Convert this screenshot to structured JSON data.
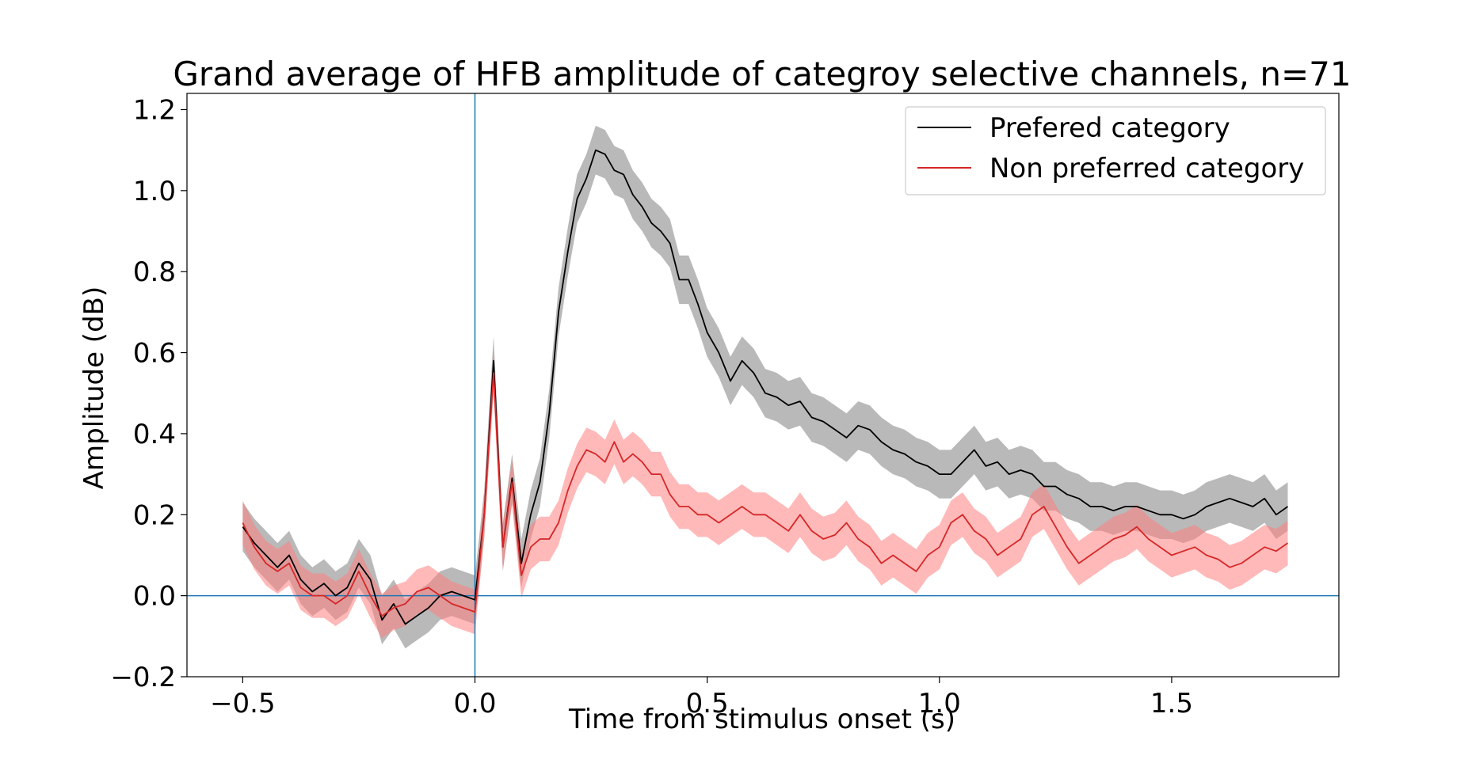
{
  "chart_data": {
    "type": "line",
    "title": "Grand average of HFB amplitude of categroy selective channels, n=71",
    "xlabel": "Time from stimulus onset (s)",
    "ylabel": "Amplitude (dB)",
    "xlim": [
      -0.62,
      1.86
    ],
    "ylim": [
      -0.2,
      1.24
    ],
    "xticks": [
      -0.5,
      0.0,
      0.5,
      1.0,
      1.5
    ],
    "xtick_labels": [
      "−0.5",
      "0.0",
      "0.5",
      "1.0",
      "1.5"
    ],
    "yticks": [
      -0.2,
      0.0,
      0.2,
      0.4,
      0.6,
      0.8,
      1.0,
      1.2
    ],
    "ytick_labels": [
      "−0.2",
      "0.0",
      "0.2",
      "0.4",
      "0.6",
      "0.8",
      "1.0",
      "1.2"
    ],
    "reference_lines": {
      "x": 0.0,
      "y": 0.0,
      "color": "#1f77b4"
    },
    "legend_position": "top-right",
    "x": [
      -0.5,
      -0.475,
      -0.45,
      -0.425,
      -0.4,
      -0.375,
      -0.35,
      -0.325,
      -0.3,
      -0.275,
      -0.25,
      -0.225,
      -0.2,
      -0.175,
      -0.15,
      -0.125,
      -0.1,
      -0.075,
      -0.05,
      -0.025,
      0.0,
      0.02,
      0.04,
      0.06,
      0.08,
      0.1,
      0.12,
      0.14,
      0.16,
      0.18,
      0.2,
      0.22,
      0.24,
      0.26,
      0.28,
      0.3,
      0.32,
      0.34,
      0.36,
      0.38,
      0.4,
      0.42,
      0.44,
      0.46,
      0.48,
      0.5,
      0.525,
      0.55,
      0.575,
      0.6,
      0.625,
      0.65,
      0.675,
      0.7,
      0.725,
      0.75,
      0.775,
      0.8,
      0.825,
      0.85,
      0.875,
      0.9,
      0.925,
      0.95,
      0.975,
      1.0,
      1.025,
      1.05,
      1.075,
      1.1,
      1.125,
      1.15,
      1.175,
      1.2,
      1.225,
      1.25,
      1.275,
      1.3,
      1.325,
      1.35,
      1.375,
      1.4,
      1.425,
      1.45,
      1.475,
      1.5,
      1.525,
      1.55,
      1.575,
      1.6,
      1.625,
      1.65,
      1.675,
      1.7,
      1.725,
      1.75
    ],
    "series": [
      {
        "name": "Prefered category",
        "color": "#000000",
        "band_color": "#808080",
        "values": [
          0.17,
          0.13,
          0.1,
          0.07,
          0.1,
          0.04,
          0.01,
          0.03,
          0.0,
          0.02,
          0.08,
          0.04,
          -0.06,
          -0.02,
          -0.07,
          -0.05,
          -0.03,
          0.0,
          0.01,
          0.0,
          -0.01,
          0.2,
          0.58,
          0.12,
          0.29,
          0.08,
          0.2,
          0.28,
          0.45,
          0.7,
          0.85,
          0.98,
          1.03,
          1.1,
          1.09,
          1.05,
          1.04,
          0.99,
          0.96,
          0.92,
          0.9,
          0.87,
          0.78,
          0.78,
          0.72,
          0.65,
          0.6,
          0.53,
          0.58,
          0.55,
          0.5,
          0.49,
          0.47,
          0.48,
          0.44,
          0.43,
          0.41,
          0.39,
          0.42,
          0.41,
          0.38,
          0.36,
          0.35,
          0.33,
          0.32,
          0.3,
          0.3,
          0.33,
          0.36,
          0.32,
          0.33,
          0.3,
          0.31,
          0.3,
          0.27,
          0.27,
          0.25,
          0.24,
          0.22,
          0.22,
          0.21,
          0.22,
          0.22,
          0.21,
          0.2,
          0.2,
          0.19,
          0.2,
          0.22,
          0.23,
          0.24,
          0.23,
          0.22,
          0.24,
          0.2,
          0.22
        ],
        "band_half_width": 0.06
      },
      {
        "name": "Non preferred category",
        "color": "#d62728",
        "band_color": "#ff7f7f",
        "values": [
          0.18,
          0.12,
          0.08,
          0.06,
          0.08,
          0.02,
          0.0,
          0.0,
          -0.02,
          0.0,
          0.06,
          0.0,
          -0.05,
          -0.03,
          -0.02,
          0.01,
          0.02,
          0.0,
          -0.02,
          -0.03,
          -0.04,
          0.2,
          0.55,
          0.12,
          0.28,
          0.05,
          0.12,
          0.14,
          0.14,
          0.18,
          0.26,
          0.32,
          0.36,
          0.35,
          0.33,
          0.38,
          0.33,
          0.35,
          0.33,
          0.3,
          0.3,
          0.25,
          0.22,
          0.22,
          0.2,
          0.2,
          0.18,
          0.2,
          0.22,
          0.2,
          0.2,
          0.18,
          0.16,
          0.2,
          0.16,
          0.14,
          0.15,
          0.18,
          0.14,
          0.12,
          0.08,
          0.1,
          0.08,
          0.06,
          0.1,
          0.12,
          0.18,
          0.2,
          0.16,
          0.14,
          0.1,
          0.12,
          0.14,
          0.2,
          0.22,
          0.17,
          0.12,
          0.08,
          0.1,
          0.12,
          0.14,
          0.15,
          0.17,
          0.14,
          0.12,
          0.1,
          0.11,
          0.12,
          0.1,
          0.09,
          0.07,
          0.08,
          0.1,
          0.12,
          0.11,
          0.13
        ],
        "band_half_width": 0.055
      }
    ]
  }
}
